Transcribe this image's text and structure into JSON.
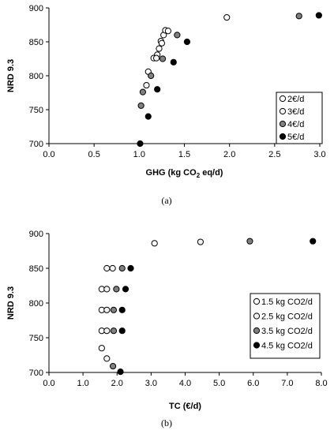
{
  "chart_data": [
    {
      "type": "scatter",
      "panel": "a",
      "caption": "(a)",
      "xlabel": "GHG (kg CO",
      "xlabel_sub": "2",
      "xlabel_tail": " eq/d)",
      "ylabel": "NRD 9.3",
      "xlim": [
        0,
        3
      ],
      "ylim": [
        700,
        900
      ],
      "xticks": [
        "0.0",
        "0.5",
        "1.0",
        "1.5",
        "2.0",
        "2.5",
        "3.0"
      ],
      "yticks": [
        "700",
        "750",
        "800",
        "850",
        "900"
      ],
      "legend_position": "right",
      "series": [
        {
          "name": "2€/d",
          "color": "#ffffff",
          "points": [
            [
              1.1,
              806
            ],
            [
              1.16,
              826
            ],
            [
              1.2,
              831
            ],
            [
              1.22,
              840
            ],
            [
              1.24,
              851
            ],
            [
              1.25,
              848
            ],
            [
              1.27,
              860
            ],
            [
              1.29,
              867
            ],
            [
              1.32,
              866
            ],
            [
              1.97,
              886
            ]
          ]
        },
        {
          "name": "3€/d",
          "color": "#f2f2f2",
          "points": [
            [
              1.08,
              786
            ],
            [
              1.19,
              826
            ]
          ]
        },
        {
          "name": "4€/d",
          "color": "#808080",
          "points": [
            [
              1.02,
              756
            ],
            [
              1.04,
              776
            ],
            [
              1.13,
              800
            ],
            [
              1.26,
              825
            ],
            [
              1.42,
              860
            ],
            [
              2.77,
              888
            ]
          ]
        },
        {
          "name": "5€/d",
          "color": "#000000",
          "points": [
            [
              1.01,
              700
            ],
            [
              1.1,
              740
            ],
            [
              1.2,
              780
            ],
            [
              1.38,
              820
            ],
            [
              1.53,
              850
            ],
            [
              2.99,
              889
            ]
          ]
        }
      ]
    },
    {
      "type": "scatter",
      "panel": "b",
      "caption": "(b)",
      "xlabel": "TC (€/d)",
      "ylabel": "NRD 9.3",
      "xlim": [
        0,
        8
      ],
      "ylim": [
        700,
        900
      ],
      "xticks": [
        "0.0",
        "1.0",
        "2.0",
        "3.0",
        "4.0",
        "5.0",
        "6.0",
        "7.0",
        "8.0"
      ],
      "yticks": [
        "700",
        "750",
        "800",
        "850",
        "900"
      ],
      "legend_position": "right",
      "series": [
        {
          "name": "1.5 kg CO2/d",
          "color": "#ffffff",
          "points": [
            [
              1.55,
              735
            ],
            [
              1.55,
              760
            ],
            [
              1.55,
              790
            ],
            [
              1.55,
              820
            ],
            [
              3.1,
              886
            ]
          ]
        },
        {
          "name": "2.5 kg CO2/d",
          "color": "#f2f2f2",
          "points": [
            [
              1.7,
              720
            ],
            [
              1.7,
              760
            ],
            [
              1.7,
              790
            ],
            [
              1.7,
              820
            ],
            [
              1.7,
              850
            ],
            [
              1.87,
              850
            ],
            [
              4.45,
              888
            ]
          ]
        },
        {
          "name": "3.5 kg CO2/d",
          "color": "#808080",
          "points": [
            [
              1.88,
              709
            ],
            [
              1.9,
              760
            ],
            [
              1.9,
              790
            ],
            [
              1.98,
              820
            ],
            [
              2.15,
              850
            ],
            [
              5.9,
              889
            ]
          ]
        },
        {
          "name": "4.5 kg CO2/d",
          "color": "#000000",
          "points": [
            [
              2.1,
              701
            ],
            [
              2.15,
              760
            ],
            [
              2.15,
              790
            ],
            [
              2.25,
              820
            ],
            [
              2.4,
              850
            ],
            [
              7.75,
              889
            ]
          ]
        }
      ]
    }
  ]
}
